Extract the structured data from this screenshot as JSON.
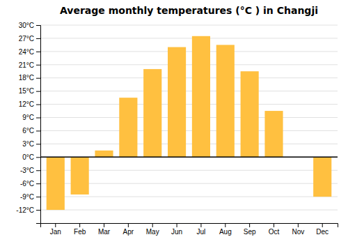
{
  "chart_data": {
    "type": "bar",
    "title": "Average monthly temperatures (°C ) in Changji",
    "categories": [
      "Jan",
      "Feb",
      "Mar",
      "Apr",
      "May",
      "Jun",
      "Jul",
      "Aug",
      "Sep",
      "Oct",
      "Nov",
      "Dec"
    ],
    "values": [
      -12.0,
      -8.5,
      1.5,
      13.5,
      20.0,
      25.0,
      27.5,
      25.5,
      19.5,
      10.5,
      0.0,
      -9.0
    ],
    "color": "#FFC040",
    "ylim": [
      -15,
      30
    ],
    "yticks": [
      {
        "value": -12,
        "label": "-12°C"
      },
      {
        "value": -9,
        "label": "-9°C"
      },
      {
        "value": -6,
        "label": "-6°C"
      },
      {
        "value": -3,
        "label": "-3°C"
      },
      {
        "value": 0,
        "label": "0°C"
      },
      {
        "value": 3,
        "label": "3°C"
      },
      {
        "value": 6,
        "label": "6°C"
      },
      {
        "value": 9,
        "label": "9°C"
      },
      {
        "value": 12,
        "label": "12°C"
      },
      {
        "value": 15,
        "label": "15°C"
      },
      {
        "value": 18,
        "label": "18°C"
      },
      {
        "value": 21,
        "label": "21°C"
      },
      {
        "value": 24,
        "label": "24°C"
      },
      {
        "value": 27,
        "label": "27°C"
      },
      {
        "value": 30,
        "label": "30°C"
      }
    ],
    "grid": true
  }
}
